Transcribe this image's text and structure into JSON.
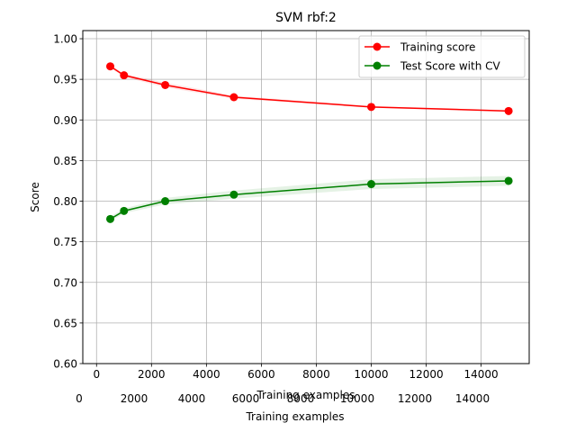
{
  "chart_data": {
    "type": "line",
    "title": "SVM rbf:2",
    "xlabel": "Training examples",
    "ylabel": "Score",
    "xlim": [
      -500,
      15750
    ],
    "ylim": [
      0.6,
      1.01
    ],
    "xticks": [
      0,
      2000,
      4000,
      6000,
      8000,
      10000,
      12000,
      14000
    ],
    "yticks": [
      0.6,
      0.65,
      0.7,
      0.75,
      0.8,
      0.85,
      0.9,
      0.95,
      1.0
    ],
    "ytick_labels": [
      "0.60",
      "0.65",
      "0.70",
      "0.75",
      "0.80",
      "0.85",
      "0.90",
      "0.95",
      "1.00"
    ],
    "grid": true,
    "legend_position": "top-right",
    "series": [
      {
        "name": "Training score",
        "color": "#ff0000",
        "band_color": "#ff0000",
        "x": [
          500,
          1000,
          2500,
          5000,
          10000,
          15000
        ],
        "y": [
          0.966,
          0.955,
          0.943,
          0.928,
          0.916,
          0.911
        ],
        "band": [
          0.002,
          0.002,
          0.003,
          0.002,
          0.001,
          0.001
        ]
      },
      {
        "name": "Test Score with CV",
        "color": "#008000",
        "band_color": "#008000",
        "x": [
          500,
          1000,
          2500,
          5000,
          10000,
          15000
        ],
        "y": [
          0.778,
          0.788,
          0.8,
          0.808,
          0.821,
          0.825
        ],
        "band": [
          0.003,
          0.003,
          0.004,
          0.005,
          0.006,
          0.006
        ]
      }
    ],
    "ghost_axis": {
      "tick_labels": [
        "0",
        "2000",
        "4000",
        "6000",
        "8000",
        "10000",
        "12000",
        "14000"
      ],
      "xlabel": "Training examples"
    }
  }
}
